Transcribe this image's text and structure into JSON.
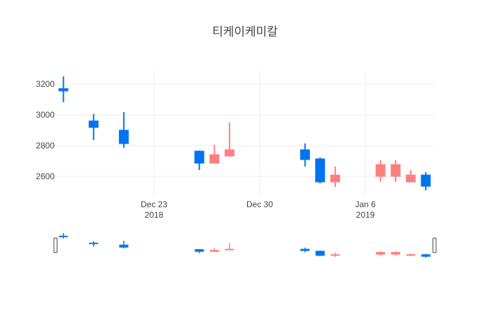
{
  "chart_data": {
    "type": "candlestick",
    "title": "티케이케미칼",
    "xlabel": "",
    "ylabel": "",
    "ylim": [
      2490,
      3270
    ],
    "y_ticks": [
      2600,
      2800,
      3000,
      3200
    ],
    "x_ticks": [
      {
        "date": "2018-12-23",
        "label": "Dec 23",
        "sublabel": "2018"
      },
      {
        "date": "2018-12-30",
        "label": "Dec 30",
        "sublabel": ""
      },
      {
        "date": "2019-01-06",
        "label": "Jan 6",
        "sublabel": "2019"
      }
    ],
    "x_range": [
      "2018-12-16T15:00",
      "2019-01-10T12:00"
    ],
    "grid": true,
    "rangeslider": true,
    "colors": {
      "increasing": "#ff7f7f",
      "decreasing": "#0074f0"
    },
    "candles": [
      {
        "date": "2018-12-17",
        "open": 3170,
        "high": 3250,
        "low": 3082,
        "close": 3155
      },
      {
        "date": "2018-12-19",
        "open": 2960,
        "high": 3005,
        "low": 2836,
        "close": 2918
      },
      {
        "date": "2018-12-21",
        "open": 2900,
        "high": 3018,
        "low": 2786,
        "close": 2813
      },
      {
        "date": "2018-12-26",
        "open": 2764,
        "high": 2768,
        "low": 2641,
        "close": 2686
      },
      {
        "date": "2018-12-27",
        "open": 2686,
        "high": 2805,
        "low": 2686,
        "close": 2741
      },
      {
        "date": "2018-12-28",
        "open": 2732,
        "high": 2950,
        "low": 2732,
        "close": 2773
      },
      {
        "date": "2019-01-02",
        "open": 2773,
        "high": 2814,
        "low": 2664,
        "close": 2709
      },
      {
        "date": "2019-01-03",
        "open": 2714,
        "high": 2723,
        "low": 2555,
        "close": 2564
      },
      {
        "date": "2019-01-04",
        "open": 2564,
        "high": 2664,
        "low": 2532,
        "close": 2609
      },
      {
        "date": "2019-01-07",
        "open": 2600,
        "high": 2705,
        "low": 2564,
        "close": 2677
      },
      {
        "date": "2019-01-08",
        "open": 2600,
        "high": 2705,
        "low": 2564,
        "close": 2677
      },
      {
        "date": "2019-01-09",
        "open": 2564,
        "high": 2641,
        "low": 2564,
        "close": 2609
      },
      {
        "date": "2019-01-10",
        "open": 2609,
        "high": 2627,
        "low": 2509,
        "close": 2536
      }
    ]
  }
}
